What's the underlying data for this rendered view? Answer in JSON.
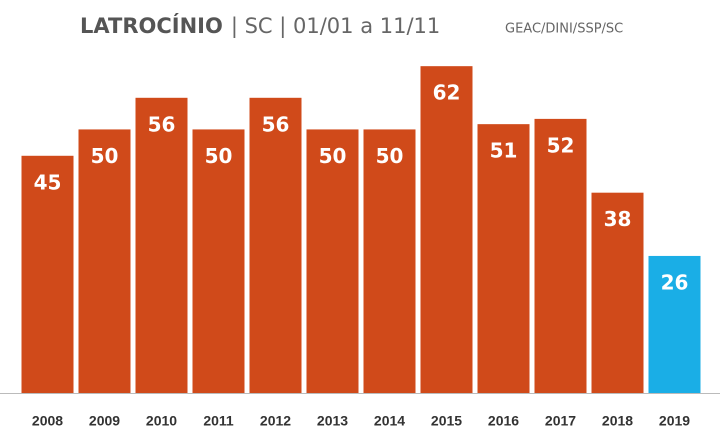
{
  "chart_data": {
    "type": "bar",
    "title": "LATROCÍNIO",
    "subtitle": "| SC | 01/01 a 11/11",
    "source": "GEAC/DINI/SSP/SC",
    "categories": [
      "2008",
      "2009",
      "2010",
      "2011",
      "2012",
      "2013",
      "2014",
      "2015",
      "2016",
      "2017",
      "2018",
      "2019"
    ],
    "values": [
      45,
      50,
      56,
      50,
      56,
      50,
      50,
      62,
      51,
      52,
      38,
      26
    ],
    "colors": [
      "#d04a1a",
      "#d04a1a",
      "#d04a1a",
      "#d04a1a",
      "#d04a1a",
      "#d04a1a",
      "#d04a1a",
      "#d04a1a",
      "#d04a1a",
      "#d04a1a",
      "#d04a1a",
      "#1aaee6"
    ],
    "ylim": [
      0,
      70
    ]
  }
}
